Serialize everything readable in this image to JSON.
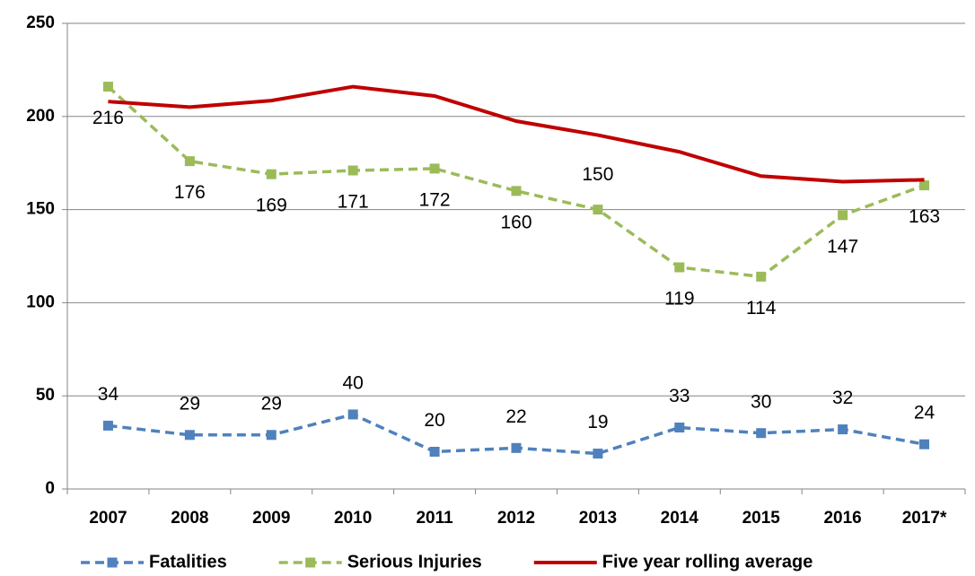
{
  "chart_data": {
    "type": "line",
    "categories": [
      "2007",
      "2008",
      "2009",
      "2010",
      "2011",
      "2012",
      "2013",
      "2014",
      "2015",
      "2016",
      "2017*"
    ],
    "series": [
      {
        "name": "Fatalities",
        "color": "#4f81bd",
        "dashed": true,
        "marker": "square",
        "data_labels": true,
        "values": [
          34,
          29,
          29,
          40,
          20,
          22,
          19,
          33,
          30,
          32,
          24
        ]
      },
      {
        "name": "Serious Injuries",
        "color": "#9bbb59",
        "dashed": true,
        "marker": "square",
        "data_labels": true,
        "values": [
          216,
          176,
          169,
          171,
          172,
          160,
          150,
          119,
          114,
          147,
          163
        ]
      },
      {
        "name": "Five year rolling average",
        "color": "#c00000",
        "dashed": false,
        "marker": "none",
        "data_labels": false,
        "values": [
          208,
          205,
          208.5,
          216,
          211,
          197.5,
          190,
          181,
          168,
          165,
          166
        ]
      }
    ],
    "ylim": [
      0,
      250
    ],
    "yticks": [
      0,
      50,
      100,
      150,
      200,
      250
    ],
    "grid": true,
    "legend": "bottom"
  }
}
